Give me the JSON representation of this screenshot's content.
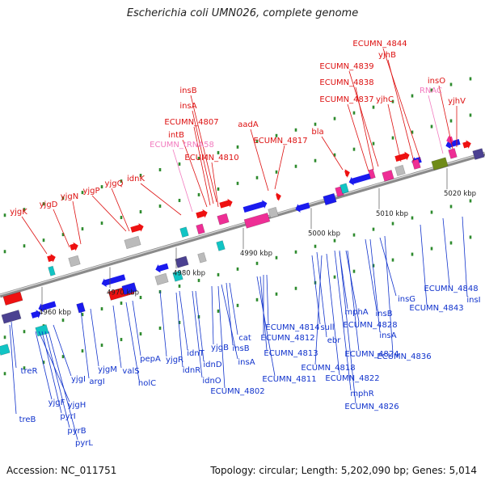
{
  "title": "Escherichia coli UMN026, complete genome",
  "accession": "Accession: NC_011751",
  "summary": "Topology: circular; Length: 5,202,090 bp; Genes: 5,014",
  "colors": {
    "label_red": "#dd1111",
    "label_pink": "#f27bbf",
    "label_blue": "#1133cc",
    "backbone": "#8a8a8a",
    "tick_dot": "#2e8b2e",
    "feature_blue": "#1a1aee",
    "feature_red": "#ee1111",
    "feature_magenta": "#ee2e95",
    "feature_gray": "#bbbbbb",
    "feature_purple": "#4b4191",
    "feature_cyan": "#11c4c4",
    "feature_olive": "#6f8b18"
  },
  "scale_labels": [
    {
      "id": "4960",
      "text": "4960 kbp"
    },
    {
      "id": "4970",
      "text": "4970 kbp"
    },
    {
      "id": "4980",
      "text": "4980 kbp"
    },
    {
      "id": "4990",
      "text": "4990 kbp"
    },
    {
      "id": "5000",
      "text": "5000 kbp"
    },
    {
      "id": "5010",
      "text": "5010 kbp"
    },
    {
      "id": "5020",
      "text": "5020 kbp"
    }
  ],
  "top_labels": [
    "ECUMN_4844",
    "yjhB",
    "ECUMN_4839",
    "ECUMN_4838",
    "ECUMN_4837",
    "yjhC",
    "insO",
    "RNAC",
    "yjhV",
    "insB",
    "insA",
    "ECUMN_4807",
    "intB",
    "ECUMN_tRNA58",
    "ECUMN_4810",
    "aadA",
    "ECUMN_4817",
    "bla",
    "yjgK",
    "yjgD",
    "yjgN",
    "yjgP",
    "yjgQ",
    "idnK"
  ],
  "bottom_labels": [
    "treR",
    "treB",
    "yjgF",
    "yjgH",
    "pyrI",
    "pyrB",
    "pyrL",
    "yjgI",
    "argI",
    "yjgM",
    "valS",
    "holC",
    "pepA",
    "yjgR",
    "idnT",
    "idnR",
    "idnD",
    "idnO",
    "yjgB",
    "cat",
    "insB",
    "insA",
    "ECUMN_4802",
    "ECUMN_4814",
    "ECUMN_4812",
    "ECUMN_4813",
    "ECUMN_4811",
    "sull",
    "ebr",
    "ECUMN_4818",
    "ECUMN_4822",
    "mphR",
    "ECUMN_4826",
    "mphA",
    "ECUMN_4828",
    "ECUMN_4824",
    "insB",
    "insA",
    "insG",
    "ECUMN_4836",
    "ECUMN_4843",
    "ECUMN_4848",
    "insI"
  ]
}
